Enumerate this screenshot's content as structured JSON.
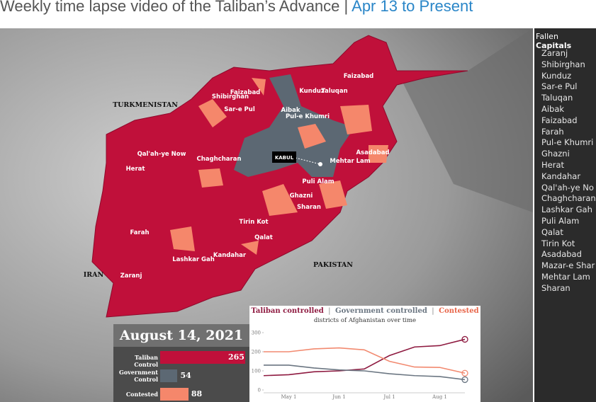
{
  "header": {
    "title": "Weekly time lapse video of the Taliban’s Advance |",
    "link": "Apr 13 to Present"
  },
  "sidebar": {
    "title_plain": "Fallen",
    "title_bold": "Capitals",
    "capitals": [
      "Zaranj",
      "Shibirghan",
      "Kunduz",
      "Sar-e Pul",
      "Taluqan",
      "Aibak",
      "Faizabad",
      "Farah",
      "Pul-e Khumri",
      "Ghazni",
      "Herat",
      "Kandahar",
      "Qal'ah-ye No",
      "Chaghcharan",
      "Lashkar Gah",
      "Puli Alam",
      "Qalat",
      "Tirin Kot",
      "Asadabad",
      "Mazar-e Shar",
      "Mehtar Lam",
      "Sharan"
    ]
  },
  "map": {
    "countries": [
      "TURKMENISTAN",
      "IRAN",
      "PAKISTAN"
    ],
    "capital_label": "KABUL",
    "cities": [
      "Faizabad",
      "Kunduz",
      "Taluqan",
      "Faizabad",
      "Shibirghan",
      "Sar-e Pul",
      "Aibak",
      "Pul-e Khumri",
      "Qal'ah-ye Now",
      "Chaghcharan",
      "Herat",
      "Asadabad",
      "Mehtar Lam",
      "Puli Alam",
      "Ghazni",
      "Sharan",
      "Tirin Kot",
      "Farah",
      "Qalat",
      "Kandahar",
      "Lashkar Gah",
      "Zaranj"
    ]
  },
  "chart_data": [
    {
      "type": "bar",
      "title": "August 14, 2021",
      "categories": [
        "Taliban Control",
        "Government Control",
        "Contested"
      ],
      "values": [
        265,
        54,
        88
      ],
      "colors": [
        "#c0103a",
        "#5c6873",
        "#f5876b"
      ]
    },
    {
      "type": "line",
      "subtitle": "districts of Afghanistan over time",
      "separator": "|",
      "categories": [
        null,
        "May 1",
        null,
        "Jun 1",
        null,
        "Jul 1",
        null,
        "Aug 1",
        null
      ],
      "series": [
        {
          "name": "Taliban controlled",
          "color": "#8e1a40",
          "values": [
            75,
            80,
            95,
            100,
            110,
            180,
            225,
            232,
            265
          ]
        },
        {
          "name": "Government controlled",
          "color": "#6b7682",
          "values": [
            130,
            130,
            115,
            105,
            100,
            85,
            75,
            70,
            54
          ]
        },
        {
          "name": "Contested",
          "color": "#f28a70",
          "values": [
            200,
            200,
            215,
            220,
            210,
            150,
            120,
            118,
            88
          ]
        }
      ],
      "ylim": [
        0,
        300
      ],
      "yticks": [
        0,
        100,
        200,
        300
      ]
    }
  ]
}
